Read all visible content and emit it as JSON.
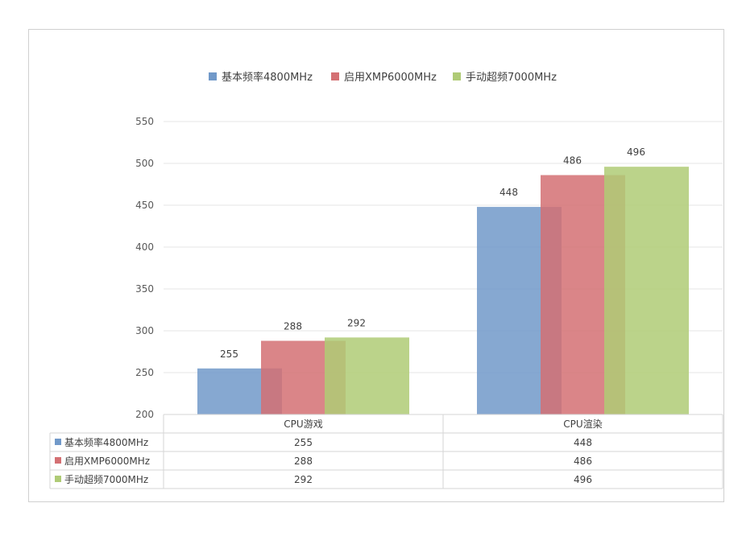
{
  "chart_data": {
    "type": "bar",
    "categories": [
      "CPU游戏",
      "CPU渲染"
    ],
    "series": [
      {
        "name": "基本频率4800MHz",
        "values": [
          255,
          448
        ],
        "color": "#7199c9"
      },
      {
        "name": "启用XMP6000MHz",
        "values": [
          288,
          486
        ],
        "color": "#d47073"
      },
      {
        "name": "手动超频7000MHz",
        "values": [
          292,
          496
        ],
        "color": "#afcb76"
      }
    ],
    "ylim": [
      200,
      550
    ],
    "yticks": [
      200,
      250,
      300,
      350,
      400,
      450,
      500,
      550
    ],
    "grid": true,
    "legend": "top-center",
    "data_table": true,
    "bar_opacity": 0.85
  }
}
